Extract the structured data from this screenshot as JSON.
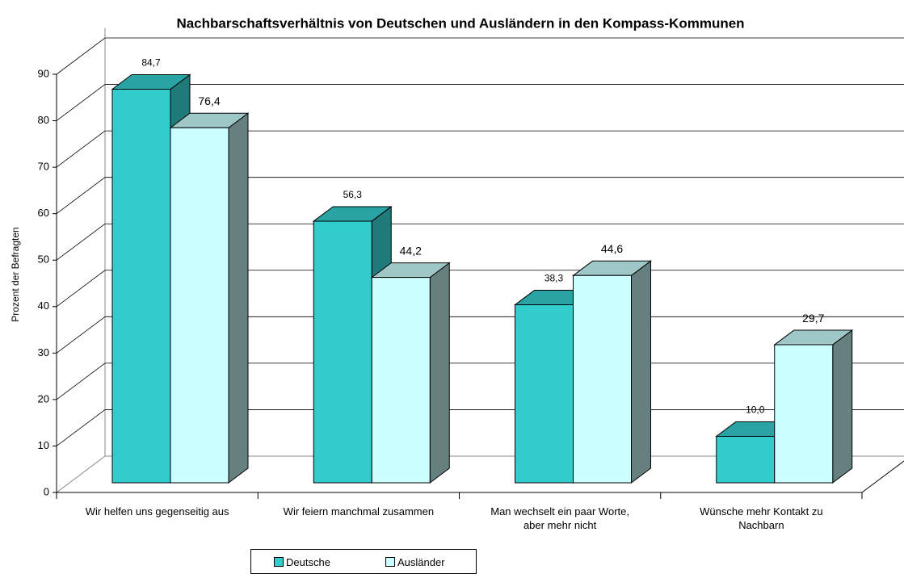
{
  "chart_data": {
    "type": "bar3d",
    "title": "Nachbarschaftsverhältnis von Deutschen und Ausländern in den Kompass-Kommunen",
    "y_label": "Prozent der  Befragten",
    "categories": [
      "Wir helfen uns gegenseitig aus",
      "Wir feiern manchmal zusammen",
      "Man wechselt ein paar Worte,\naber mehr nicht",
      "Wünsche mehr Kontakt zu\nNachbarn"
    ],
    "series": [
      {
        "name": "Deutsche",
        "color": "#33cccc",
        "values": [
          84.7,
          56.3,
          38.3,
          10.0
        ],
        "value_labels": [
          "84,7",
          "56,3",
          "38,3",
          "10,0"
        ]
      },
      {
        "name": "Ausländer",
        "color": "#ccffff",
        "values": [
          76.4,
          44.2,
          44.6,
          29.7
        ],
        "value_labels": [
          "76,4",
          "44,2",
          "44,6",
          "29,7"
        ]
      }
    ],
    "ylim": [
      0,
      90
    ],
    "yticks": [
      0,
      10,
      20,
      30,
      40,
      50,
      60,
      70,
      80,
      90
    ],
    "grid": true
  }
}
